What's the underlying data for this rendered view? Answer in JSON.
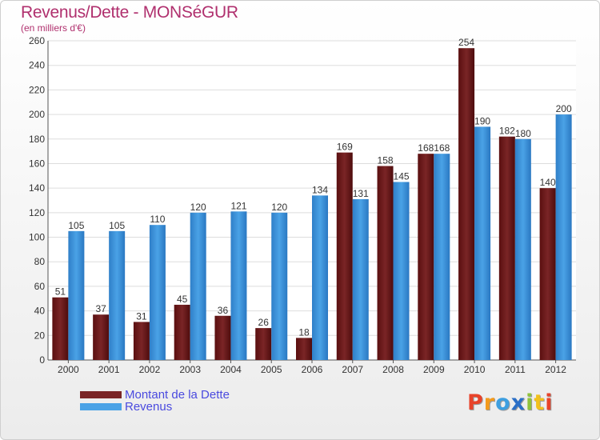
{
  "title": "Revenus/Dette - MONSéGUR",
  "subtitle": "(en milliers d'€)",
  "colors": {
    "dette": "#7a2526",
    "revenus": "#4aa2e6",
    "title": "#b0306e",
    "legend_text": "#4a4adf"
  },
  "legend": {
    "dette_label": "Montant de la Dette",
    "revenus_label": "Revenus"
  },
  "logo": {
    "letters": [
      "P",
      "r",
      "o",
      "x",
      "i",
      "t",
      "i"
    ],
    "colors": [
      "#e8432a",
      "#f39a1c",
      "#3e9fe0",
      "#2b6fc7",
      "#8fc33a",
      "#f2c11b",
      "#e8432a"
    ]
  },
  "chart_data": {
    "type": "bar",
    "title": "Revenus/Dette - MONSéGUR",
    "ylabel": "(en milliers d'€)",
    "xlabel": "",
    "ylim": [
      0,
      260
    ],
    "yticks": [
      0,
      20,
      40,
      60,
      80,
      100,
      120,
      140,
      160,
      180,
      200,
      220,
      240,
      260
    ],
    "grid": true,
    "legend_position": "bottom-left",
    "categories": [
      "2000",
      "2001",
      "2002",
      "2003",
      "2004",
      "2005",
      "2006",
      "2007",
      "2008",
      "2009",
      "2010",
      "2011",
      "2012"
    ],
    "series": [
      {
        "name": "Montant de la Dette",
        "values": [
          51,
          37,
          31,
          45,
          36,
          26,
          18,
          169,
          158,
          168,
          254,
          182,
          140
        ]
      },
      {
        "name": "Revenus",
        "values": [
          105,
          105,
          110,
          120,
          121,
          120,
          134,
          131,
          145,
          168,
          190,
          180,
          200
        ]
      }
    ]
  }
}
